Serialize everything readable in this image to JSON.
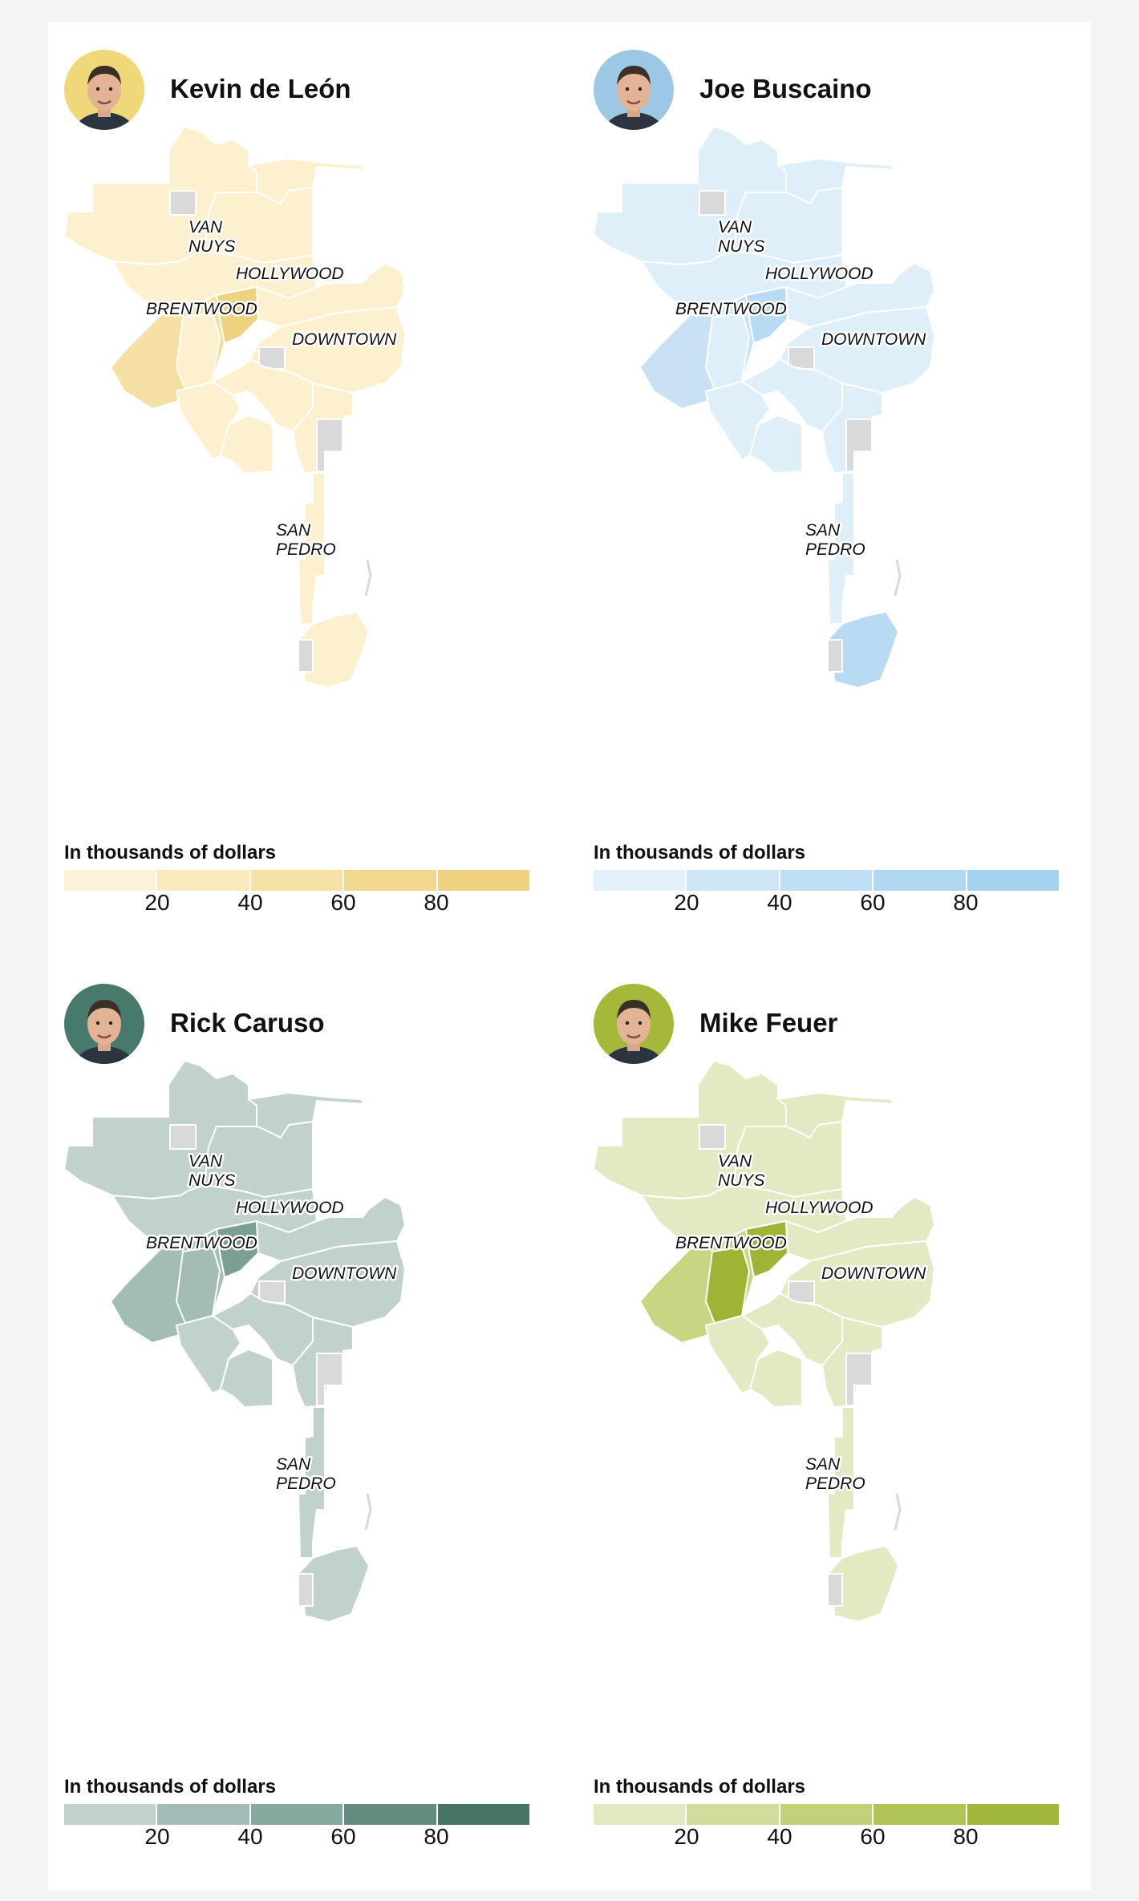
{
  "candidates": [
    {
      "name": "Kevin de León",
      "photo_bg": "#f0d77a",
      "colors": {
        "district": "#fcf0cf",
        "mid": "#f5dfa2",
        "hot": "#eed27f",
        "hot2": "#fcf0cf",
        "south": "#fcf0cf"
      },
      "legend_colors": [
        "#fdf2d8",
        "#f9e9bd",
        "#f6e1a7",
        "#f2d88e",
        "#eed27f"
      ]
    },
    {
      "name": "Joe Buscaino",
      "photo_bg": "#9cc8e6",
      "colors": {
        "district": "#deeffa",
        "mid": "#c8e2f4",
        "hot": "#b8daf2",
        "hot2": "#deeffa",
        "south": "#b8daf2"
      },
      "legend_colors": [
        "#e2f1fb",
        "#cfe6f6",
        "#bfdef3",
        "#b0d8f1",
        "#a3d3ee"
      ]
    },
    {
      "name": "Rick Caruso",
      "photo_bg": "#477a6d",
      "colors": {
        "district": "#c1d2cd",
        "mid": "#a3bcb5",
        "hot": "#7b9f95",
        "hot2": "#a3bcb5",
        "south": "#c1d2cd"
      },
      "legend_colors": [
        "#c1d2cd",
        "#a3bcb5",
        "#86a89f",
        "#638c80",
        "#467568"
      ]
    },
    {
      "name": "Mike Feuer",
      "photo_bg": "#a5b83a",
      "colors": {
        "district": "#e3e9c3",
        "mid": "#c8d683",
        "hot": "#9fb334",
        "hot2": "#9fb334",
        "south": "#e3e9c3"
      },
      "legend_colors": [
        "#e3e9c3",
        "#d2dc9c",
        "#c2d079",
        "#b1c457",
        "#a0b73a"
      ]
    }
  ],
  "legend": {
    "title": "In thousands of dollars",
    "ticks": [
      "20",
      "40",
      "60",
      "80"
    ]
  },
  "places": {
    "van_nuys_1": "VAN",
    "van_nuys_2": "NUYS",
    "hollywood": "HOLLYWOOD",
    "brentwood": "BRENTWOOD",
    "downtown": "DOWNTOWN",
    "san_pedro_1": "SAN",
    "san_pedro_2": "PEDRO"
  }
}
